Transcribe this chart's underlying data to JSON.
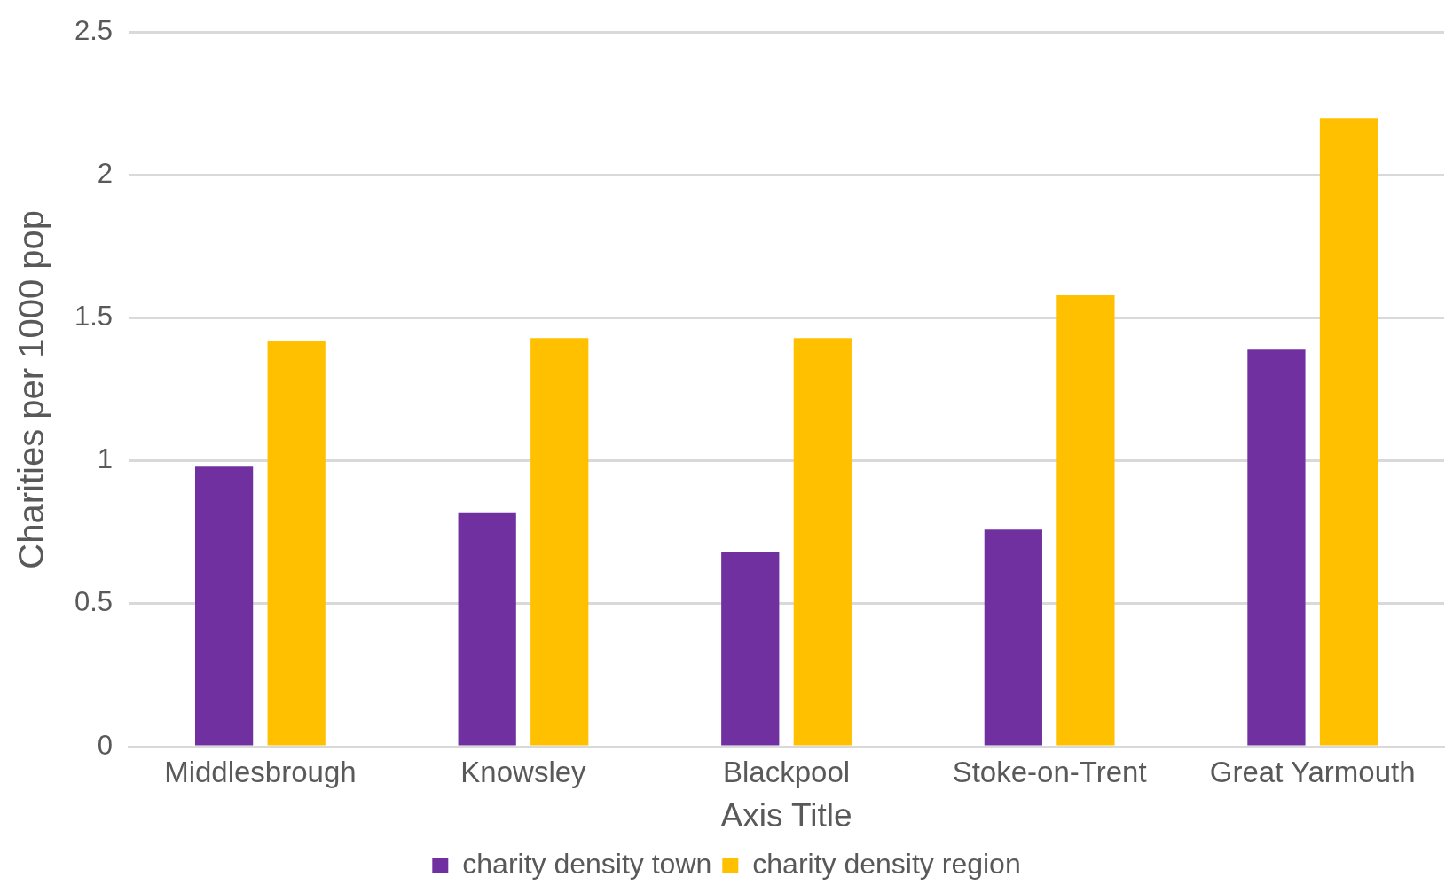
{
  "chart_data": {
    "type": "bar",
    "xlabel": "Axis Title",
    "ylabel": "Charities per 1000 pop",
    "categories": [
      "Middlesbrough",
      "Knowsley",
      "Blackpool",
      "Stoke-on-Trent",
      "Great Yarmouth"
    ],
    "series": [
      {
        "name": "charity density town",
        "color": "#7030a0",
        "values": [
          0.98,
          0.82,
          0.68,
          0.76,
          1.39
        ]
      },
      {
        "name": "charity density region",
        "color": "#ffc000",
        "values": [
          1.42,
          1.43,
          1.43,
          1.58,
          2.2
        ]
      }
    ],
    "ylim": [
      0,
      2.5
    ],
    "yticks": [
      0,
      0.5,
      1,
      1.5,
      2,
      2.5
    ],
    "grid": "y",
    "legend": "bottom"
  }
}
